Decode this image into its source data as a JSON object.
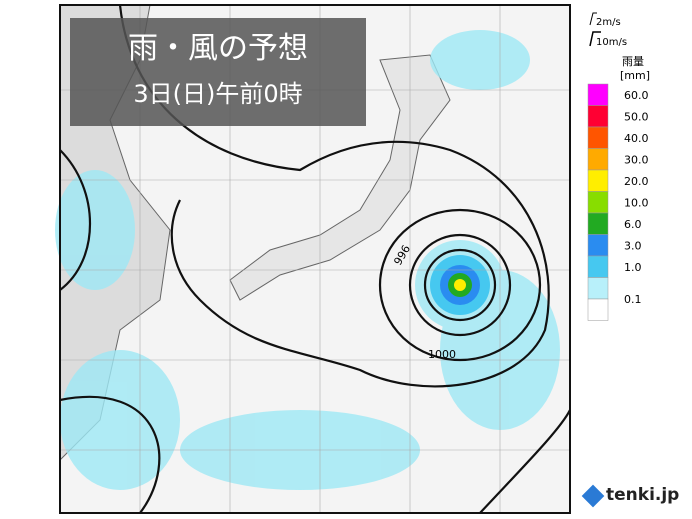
{
  "header": {
    "title": "雨・風の予想",
    "subtitle": "3日(日)午前0時"
  },
  "wind_legend": {
    "light": "2m/s",
    "strong": "10m/s"
  },
  "rain_legend": {
    "title": "雨量",
    "unit": "[mm]",
    "items": [
      {
        "label": "60.0",
        "color": "#ff00ff"
      },
      {
        "label": "50.0",
        "color": "#ff0033"
      },
      {
        "label": "40.0",
        "color": "#ff5500"
      },
      {
        "label": "30.0",
        "color": "#ffaa00"
      },
      {
        "label": "20.0",
        "color": "#ffee00"
      },
      {
        "label": "10.0",
        "color": "#88dd00"
      },
      {
        "label": "6.0",
        "color": "#22aa22"
      },
      {
        "label": "3.0",
        "color": "#2a8cf0"
      },
      {
        "label": "1.0",
        "color": "#46c8f0"
      },
      {
        "label": "0.1",
        "color": "#b8f0fa"
      }
    ]
  },
  "isobars": [
    {
      "label": "996"
    },
    {
      "label": "1000"
    }
  ],
  "logo": "tenki.jp"
}
